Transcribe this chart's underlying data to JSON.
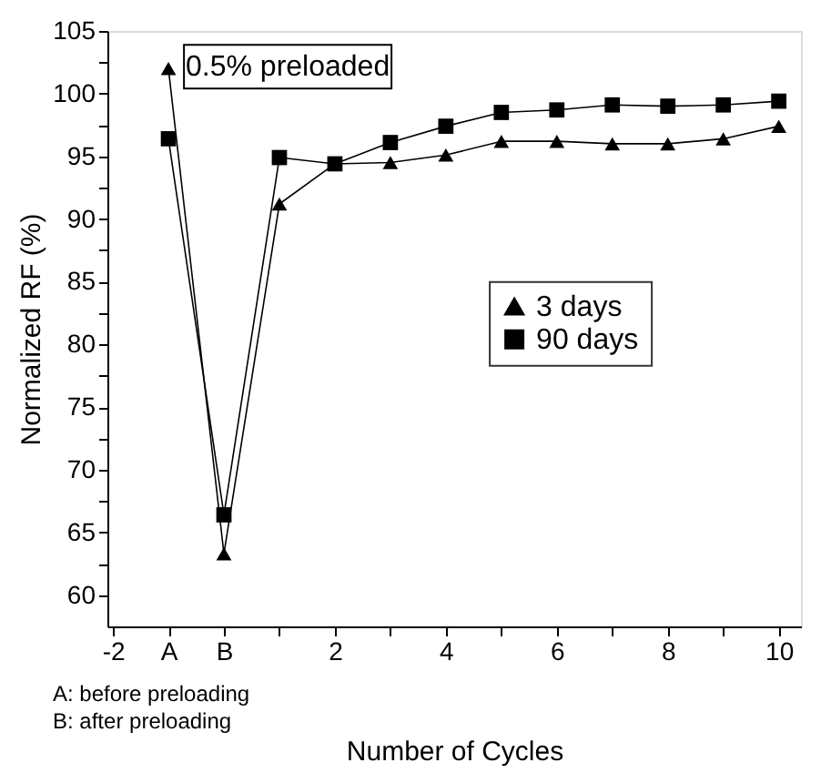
{
  "chart_data": {
    "type": "line",
    "xlabel": "Number of Cycles",
    "ylabel": "Normalized RF (%)",
    "x": [
      -1,
      0,
      1,
      2,
      3,
      4,
      5,
      6,
      7,
      8,
      9,
      10
    ],
    "series": [
      {
        "name": "3 days",
        "color": "#000000",
        "marker": "triangle",
        "values": [
          102.0,
          63.3,
          91.2,
          94.4,
          94.5,
          95.1,
          96.2,
          96.2,
          96.0,
          96.0,
          96.4,
          97.4
        ]
      },
      {
        "name": "90 days",
        "color": "#000000",
        "marker": "square",
        "values": [
          96.4,
          66.4,
          94.9,
          94.4,
          96.1,
          97.4,
          98.5,
          98.7,
          99.1,
          99.0,
          99.1,
          99.4
        ]
      }
    ],
    "xlim": [
      -2.1,
      10.4
    ],
    "xticks": [
      -2,
      {
        "value": -1,
        "label": "A"
      },
      {
        "value": 0,
        "label": "B"
      },
      {
        "value": 1,
        "label": null
      },
      2,
      {
        "value": 3,
        "label": null
      },
      4,
      {
        "value": 5,
        "label": null
      },
      6,
      {
        "value": 7,
        "label": null
      },
      8,
      {
        "value": 9,
        "label": null
      },
      10
    ],
    "ylim": [
      57.5,
      105
    ],
    "yticks": [
      60,
      {
        "value": 62.5,
        "label": null
      },
      65,
      {
        "value": 67.5,
        "label": null
      },
      70,
      {
        "value": 72.5,
        "label": null
      },
      75,
      {
        "value": 77.5,
        "label": null
      },
      80,
      {
        "value": 82.5,
        "label": null
      },
      85,
      {
        "value": 87.5,
        "label": null
      },
      90,
      {
        "value": 92.5,
        "label": null
      },
      95,
      {
        "value": 97.5,
        "label": null
      },
      100,
      {
        "value": 102.5,
        "label": null
      },
      105
    ],
    "annotations": [
      "0.5% preloaded",
      "A: before preloading",
      "B: after preloading"
    ],
    "grid": false,
    "legend": "right",
    "line_style": "solid"
  }
}
